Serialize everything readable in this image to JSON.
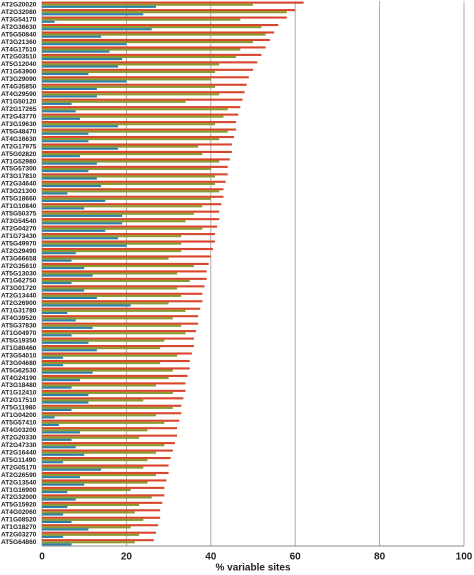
{
  "chart_data": {
    "type": "bar",
    "orientation": "horizontal",
    "x_label": "% variable sites",
    "categories": [
      "AT2G20020",
      "AT2G32080",
      "AT3G54170",
      "AT2G36630",
      "AT5G50840",
      "AT3G21360",
      "AT4G17510",
      "AT2G03510",
      "AT5G12040",
      "AT1G63900",
      "AT3G29090",
      "AT4G35850",
      "AT4G29590",
      "AT1G50120",
      "AT2G17265",
      "AT2G43770",
      "AT3G19630",
      "AT5G48470",
      "AT4G16630",
      "AT2G17975",
      "AT5G02820",
      "AT1G52980",
      "AT5G57300",
      "AT3G17810",
      "AT2G34640",
      "AT3G21300",
      "AT5G18660",
      "AT1G10840",
      "AT5G50375",
      "AT3G54540",
      "AT2G04270",
      "AT1G73430",
      "AT5G49970",
      "AT2G29490",
      "AT3G66658",
      "AT2G35610",
      "AT5G13030",
      "AT1G62750",
      "AT3G01720",
      "AT2G13440",
      "AT2G26900",
      "AT1G31780",
      "AT4G39520",
      "AT5G37830",
      "AT1G04970",
      "AT5G19350",
      "AT1G80460",
      "AT3G54010",
      "AT3G04680",
      "AT5G62530",
      "AT4G24190",
      "AT3G18480",
      "AT1G12410",
      "AT2G17510",
      "AT5G11980",
      "AT1G04200",
      "AT5G57410",
      "AT4G03200",
      "AT2G20330",
      "AT2G47330",
      "AT2G16440",
      "AT5G11490",
      "AT2G05170",
      "AT2G26590",
      "AT2G13540",
      "AT1G16900",
      "AT2G32000",
      "AT5G15920",
      "AT4G02060",
      "AT1G08520",
      "AT1G18270",
      "AT2G03270",
      "AT5G64860"
    ],
    "series": [
      {
        "color": "#d9462b",
        "values": [
          62,
          60,
          58,
          56,
          55,
          54,
          53,
          52,
          51,
          50,
          49,
          48.5,
          48,
          47.5,
          47,
          46.5,
          46,
          46,
          45.5,
          45,
          45,
          44.5,
          44,
          44,
          43.5,
          43,
          43,
          42.5,
          42,
          42,
          41.5,
          41,
          41,
          40.5,
          40,
          39.5,
          39,
          39,
          38.5,
          38,
          38,
          37.5,
          37,
          37,
          36.5,
          36,
          36,
          35.5,
          35,
          35,
          34.5,
          34,
          34,
          33.5,
          33,
          33,
          32.5,
          32,
          32,
          31.5,
          31,
          30.5,
          30,
          30,
          29.5,
          29,
          29,
          28.5,
          28,
          28,
          27.5,
          27,
          26.5
        ]
      },
      {
        "color": "#8a9a2f",
        "values": [
          50,
          58,
          47,
          52,
          53,
          50,
          47,
          46,
          42,
          41,
          40,
          41,
          42,
          34,
          44,
          43,
          41,
          44,
          42,
          37,
          38,
          42,
          40,
          41,
          41,
          42,
          40,
          38,
          36,
          34,
          38,
          33,
          33,
          33,
          30,
          36,
          32,
          35,
          32,
          33,
          30,
          34,
          31,
          33,
          34,
          29,
          28,
          32,
          28,
          31,
          30,
          27,
          31,
          24,
          31,
          27,
          29,
          25,
          23,
          29,
          27,
          25,
          24,
          27,
          25,
          21,
          26,
          23,
          22,
          24,
          21,
          23,
          22
        ]
      },
      {
        "color": "#2e7fa8",
        "values": [
          27,
          24,
          3,
          26,
          14,
          20,
          16,
          19,
          18,
          11,
          20,
          13,
          13,
          7,
          8,
          9,
          18,
          11,
          11,
          18,
          9,
          13,
          11,
          13,
          14,
          6,
          15,
          10,
          19,
          19,
          15,
          18,
          20,
          8,
          7,
          10,
          12,
          7,
          10,
          13,
          21,
          6,
          8,
          12,
          7,
          11,
          13,
          5,
          5,
          12,
          9,
          7,
          11,
          11,
          7,
          3,
          4,
          9,
          7,
          8,
          10,
          5,
          14,
          9,
          10,
          6,
          8,
          6,
          5,
          7,
          11,
          5,
          7
        ]
      }
    ],
    "xlim": [
      0,
      100
    ],
    "xticks": [
      0,
      20,
      40,
      60,
      80,
      100
    ],
    "grid": true
  }
}
